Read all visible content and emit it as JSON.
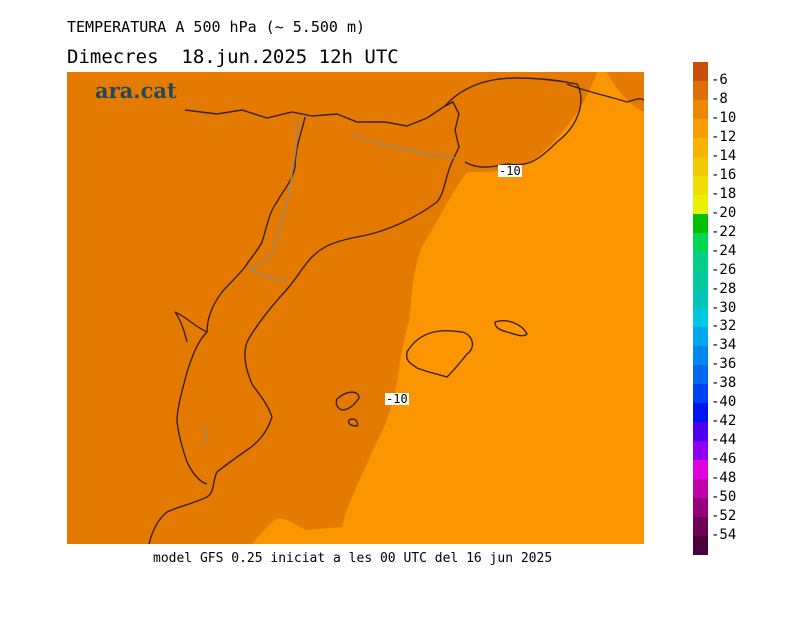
{
  "header": {
    "title": "TEMPERATURA A 500 hPa (~ 5.500 m)",
    "subtitle": "Dimecres  18.jun.2025 12h UTC"
  },
  "logo": "ara.cat",
  "map": {
    "contour_labels": [
      "-10",
      "-10"
    ],
    "colors": {
      "land_outline": "#3a1f1f",
      "border": "#8a8a8a",
      "fill_minus10_to_minus8": "#e57a00",
      "fill_minus12_to_minus10": "#fc9600"
    }
  },
  "footer": "model GFS 0.25 iniciat a les 00 UTC del 16 jun 2025",
  "colorbar": {
    "labels": [
      "-6",
      "-8",
      "-10",
      "-12",
      "-14",
      "-16",
      "-18",
      "-20",
      "-22",
      "-24",
      "-26",
      "-28",
      "-30",
      "-32",
      "-34",
      "-36",
      "-38",
      "-40",
      "-42",
      "-44",
      "-46",
      "-48",
      "-50",
      "-52",
      "-54"
    ],
    "colors": [
      "#c84e0a",
      "#e06e06",
      "#f08600",
      "#fb9c00",
      "#f8b300",
      "#f2c800",
      "#efde00",
      "#e9f000",
      "#00c000",
      "#00d650",
      "#00d088",
      "#00cca0",
      "#00c6b8",
      "#00c8e0",
      "#00a8f0",
      "#0088f0",
      "#0068f0",
      "#0040f0",
      "#0014f0",
      "#5000f0",
      "#9000f0",
      "#e000e0",
      "#c000a8",
      "#96007a",
      "#6e0055",
      "#4a0038"
    ]
  }
}
